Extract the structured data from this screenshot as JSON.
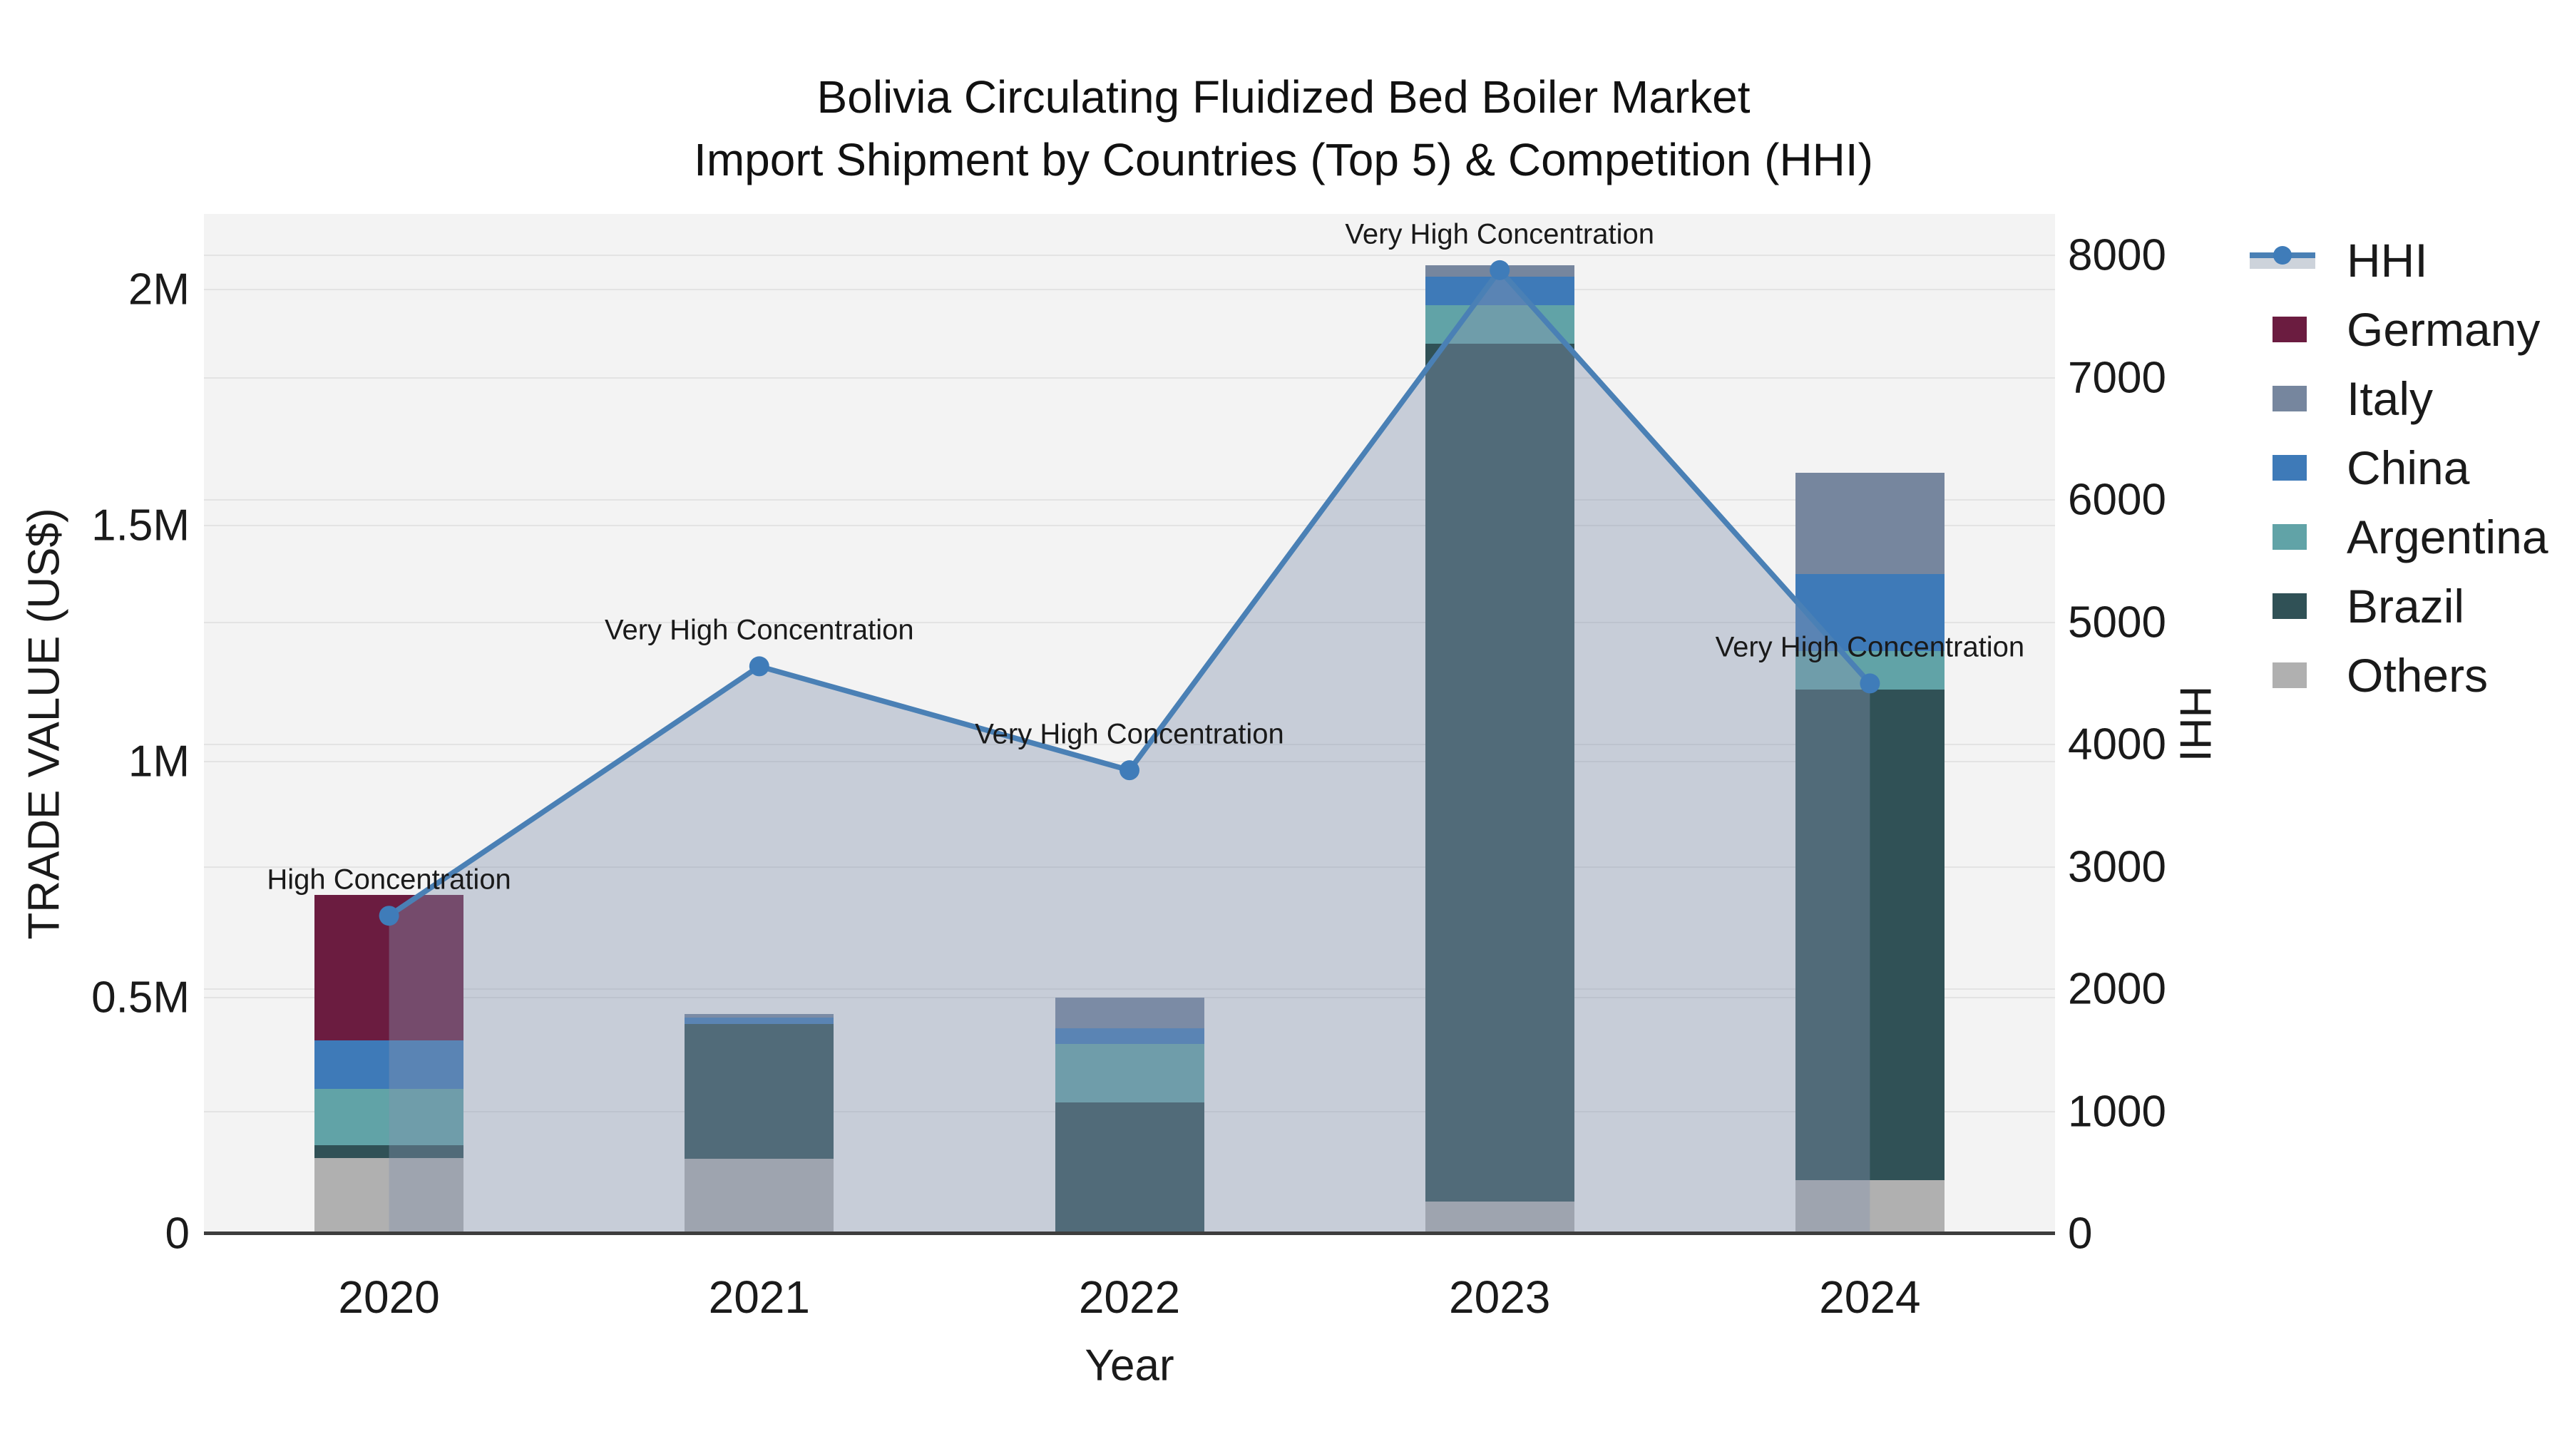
{
  "title": {
    "line1": "Bolivia Circulating Fluidized Bed Boiler Market",
    "line2": "Import Shipment by Countries (Top 5) & Competition (HHI)"
  },
  "axes": {
    "x": {
      "title": "Year",
      "categories": [
        "2020",
        "2021",
        "2022",
        "2023",
        "2024"
      ]
    },
    "y_left": {
      "title": "TRADE VALUE (US$)",
      "tick_labels": [
        "0",
        "0.5M",
        "1M",
        "1.5M",
        "2M"
      ],
      "tick_values": [
        0,
        500000,
        1000000,
        1500000,
        2000000
      ],
      "max": 2160000
    },
    "y_right": {
      "title": "HHI",
      "tick_labels": [
        "0",
        "1000",
        "2000",
        "3000",
        "4000",
        "5000",
        "6000",
        "7000",
        "8000"
      ],
      "tick_values": [
        0,
        1000,
        2000,
        3000,
        4000,
        5000,
        6000,
        7000,
        8000
      ],
      "max": 8340
    }
  },
  "legend": {
    "items": [
      {
        "label": "HHI",
        "kind": "line",
        "color": "#4a80b5"
      },
      {
        "label": "Germany",
        "kind": "swatch",
        "color": "#6b1c40"
      },
      {
        "label": "Italy",
        "kind": "swatch",
        "color": "#76869e"
      },
      {
        "label": "China",
        "kind": "swatch",
        "color": "#3e7ab8"
      },
      {
        "label": "Argentina",
        "kind": "swatch",
        "color": "#61a3a7"
      },
      {
        "label": "Brazil",
        "kind": "swatch",
        "color": "#305156"
      },
      {
        "label": "Others",
        "kind": "swatch",
        "color": "#b0b0b0"
      }
    ]
  },
  "chart_data": {
    "type": "bar",
    "subtype": "stacked-bar-with-line",
    "title": "Bolivia Circulating Fluidized Bed Boiler Market — Import Shipment by Countries (Top 5) & Competition (HHI)",
    "xlabel": "Year",
    "ylabel_left": "TRADE VALUE (US$)",
    "ylabel_right": "HHI",
    "categories": [
      "2020",
      "2021",
      "2022",
      "2023",
      "2024"
    ],
    "series": [
      {
        "name": "Others",
        "stack_order": 1,
        "color": "#b0b0b0",
        "values": [
          160000,
          159000,
          0,
          68000,
          113000
        ]
      },
      {
        "name": "Brazil",
        "stack_order": 2,
        "color": "#305156",
        "values": [
          27000,
          285000,
          278000,
          1817000,
          1039000
        ]
      },
      {
        "name": "Argentina",
        "stack_order": 3,
        "color": "#61a3a7",
        "values": [
          119000,
          0,
          124000,
          82000,
          82000
        ]
      },
      {
        "name": "China",
        "stack_order": 4,
        "color": "#3e7ab8",
        "values": [
          104000,
          13000,
          33000,
          60000,
          163000
        ]
      },
      {
        "name": "Italy",
        "stack_order": 5,
        "color": "#76869e",
        "values": [
          0,
          8000,
          65000,
          24000,
          215000
        ]
      },
      {
        "name": "Germany",
        "stack_order": 6,
        "color": "#6b1c40",
        "values": [
          307000,
          0,
          0,
          0,
          0
        ]
      }
    ],
    "line_series": {
      "name": "HHI",
      "axis": "right",
      "color": "#4a80b5",
      "marker_color": "#3f7cb9",
      "area_fill": "rgba(132,148,174,0.40)",
      "values": [
        2600,
        4640,
        3790,
        7880,
        4500
      ]
    },
    "annotations": [
      {
        "category": "2020",
        "text": "High Concentration"
      },
      {
        "category": "2021",
        "text": "Very High Concentration"
      },
      {
        "category": "2022",
        "text": "Very High Concentration"
      },
      {
        "category": "2023",
        "text": "Very High Concentration"
      },
      {
        "category": "2024",
        "text": "Very High Concentration"
      }
    ],
    "ylim_left": [
      0,
      2160000
    ],
    "ylim_right": [
      0,
      8340
    ],
    "grid": true,
    "legend_position": "right"
  }
}
